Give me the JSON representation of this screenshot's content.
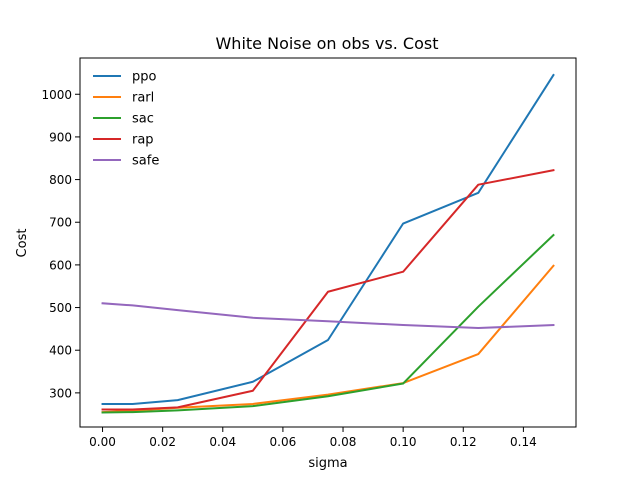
{
  "chart_data": {
    "type": "line",
    "title": "White Noise on obs vs. Cost",
    "xlabel": "sigma",
    "ylabel": "Cost",
    "xlim": [
      -0.0075,
      0.1575
    ],
    "ylim": [
      220,
      1085
    ],
    "x_ticks": [
      0.0,
      0.02,
      0.04,
      0.06,
      0.08,
      0.1,
      0.12,
      0.14
    ],
    "x_tick_labels": [
      "0.00",
      "0.02",
      "0.04",
      "0.06",
      "0.08",
      "0.10",
      "0.12",
      "0.14"
    ],
    "y_ticks": [
      300,
      400,
      500,
      600,
      700,
      800,
      900,
      1000
    ],
    "y_tick_labels": [
      "300",
      "400",
      "500",
      "600",
      "700",
      "800",
      "900",
      "1000"
    ],
    "grid": false,
    "legend_position": "top-left",
    "x": [
      0.0,
      0.01,
      0.025,
      0.05,
      0.075,
      0.1,
      0.125,
      0.15
    ],
    "series": [
      {
        "name": "ppo",
        "color": "#1f77b4",
        "values": [
          274,
          274,
          283,
          326,
          424,
          697,
          769,
          1045
        ]
      },
      {
        "name": "rarl",
        "color": "#ff7f0e",
        "values": [
          255,
          258,
          265,
          274,
          296,
          323,
          391,
          598
        ]
      },
      {
        "name": "sac",
        "color": "#2ca02c",
        "values": [
          254,
          255,
          259,
          269,
          292,
          322,
          502,
          670
        ]
      },
      {
        "name": "rap",
        "color": "#d62728",
        "values": [
          261,
          261,
          266,
          305,
          537,
          584,
          788,
          822
        ]
      },
      {
        "name": "safe",
        "color": "#9467bd",
        "values": [
          510,
          505,
          494,
          476,
          468,
          459,
          452,
          459
        ]
      }
    ]
  }
}
